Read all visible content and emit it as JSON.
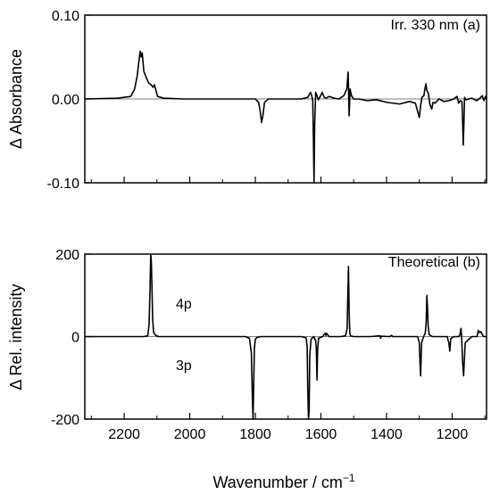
{
  "chart_data": [
    {
      "type": "line",
      "panel": "(a)",
      "annotation": "Irr. 330 nm (a)",
      "ylabel": "Δ Absorbance",
      "xlabel": "",
      "xlim": [
        2320,
        1095
      ],
      "ylim": [
        -0.1,
        0.1
      ],
      "yticks": [
        0.1,
        0.0,
        -0.1
      ],
      "ytick_labels": [
        "0.10",
        "0.00",
        "-0.10"
      ],
      "xticks": [
        2200,
        2000,
        1800,
        1600,
        1400,
        1200
      ],
      "xtick_labels_visible": false,
      "grid": false,
      "baseline": 0,
      "x": [
        2320,
        2220,
        2180,
        2168,
        2160,
        2155,
        2151,
        2148,
        2145,
        2140,
        2132,
        2125,
        2118,
        2112,
        2108,
        2103,
        2098,
        2080,
        2020,
        1960,
        1900,
        1840,
        1800,
        1790,
        1785,
        1781,
        1777,
        1772,
        1760,
        1700,
        1660,
        1640,
        1632,
        1628,
        1625,
        1623,
        1621,
        1619,
        1616,
        1612,
        1608,
        1602,
        1596,
        1590,
        1585,
        1575,
        1560,
        1545,
        1530,
        1521,
        1517,
        1514,
        1511,
        1507,
        1500,
        1485,
        1460,
        1430,
        1400,
        1360,
        1330,
        1312,
        1305,
        1300,
        1296,
        1292,
        1286,
        1283,
        1280,
        1277,
        1275,
        1272,
        1268,
        1262,
        1258,
        1252,
        1240,
        1225,
        1210,
        1195,
        1185,
        1180,
        1175,
        1170,
        1168,
        1166,
        1164,
        1162,
        1158,
        1150,
        1140,
        1125,
        1115,
        1108,
        1103,
        1098,
        1095
      ],
      "y": [
        0.0,
        0.001,
        0.003,
        0.012,
        0.028,
        0.045,
        0.057,
        0.05,
        0.055,
        0.033,
        0.025,
        0.019,
        0.017,
        0.014,
        0.017,
        0.01,
        0.003,
        0.001,
        0.0,
        0.0,
        0.0,
        0.0,
        0.0,
        -0.004,
        -0.015,
        -0.028,
        -0.02,
        -0.004,
        0.0,
        0.0,
        0.0,
        0.002,
        0.008,
        0.004,
        -0.002,
        -0.045,
        -0.1,
        -0.03,
        0.008,
        0.004,
        -0.001,
        0.003,
        0.008,
        0.002,
        0.001,
        0.003,
        0.001,
        0.0,
        0.004,
        0.012,
        0.032,
        -0.02,
        0.012,
        0.004,
        0.0,
        0.0,
        -0.002,
        -0.001,
        -0.004,
        -0.006,
        -0.003,
        -0.005,
        -0.015,
        -0.022,
        -0.008,
        0.002,
        0.004,
        0.012,
        0.018,
        0.01,
        0.009,
        0.006,
        -0.006,
        -0.012,
        -0.004,
        -0.005,
        0.0,
        -0.003,
        -0.002,
        0.0,
        0.003,
        -0.005,
        -0.002,
        -0.003,
        -0.025,
        -0.055,
        -0.03,
        0.002,
        -0.001,
        0.0,
        0.001,
        -0.002,
        0.001,
        0.004,
        -0.002,
        0.003,
        0.0
      ]
    },
    {
      "type": "line",
      "panel": "(b)",
      "annotation": "Theoretical (b)",
      "band_labels": [
        "4p",
        "3p"
      ],
      "ylabel": "Δ Rel. intensity",
      "xlabel": "Wavenumber / cm−1",
      "xlim": [
        2320,
        1095
      ],
      "ylim": [
        -200,
        200
      ],
      "yticks": [
        200,
        0,
        -200
      ],
      "ytick_labels": [
        "200",
        "0",
        "-200"
      ],
      "xticks": [
        2200,
        2000,
        1800,
        1600,
        1400,
        1200
      ],
      "xtick_labels": [
        "2200",
        "2000",
        "1800",
        "1600",
        "1400",
        "1200"
      ],
      "grid": false,
      "baseline": 0,
      "x": [
        2320,
        2140,
        2128,
        2124,
        2121,
        2119,
        2117,
        2115,
        2113,
        2110,
        2104,
        2095,
        1920,
        1830,
        1818,
        1812,
        1809,
        1807,
        1805,
        1803,
        1800,
        1795,
        1785,
        1660,
        1645,
        1642,
        1640,
        1638,
        1636,
        1634,
        1630,
        1622,
        1616,
        1614,
        1612,
        1610,
        1607,
        1595,
        1587,
        1585,
        1583,
        1575,
        1540,
        1525,
        1520,
        1518,
        1516,
        1514,
        1512,
        1510,
        1500,
        1450,
        1420,
        1418,
        1416,
        1390,
        1385,
        1380,
        1340,
        1305,
        1300,
        1298,
        1296,
        1293,
        1287,
        1282,
        1279,
        1277,
        1275,
        1273,
        1270,
        1260,
        1215,
        1210,
        1207,
        1204,
        1195,
        1180,
        1176,
        1173,
        1171,
        1168,
        1165,
        1160,
        1140,
        1124,
        1122,
        1120,
        1117,
        1112,
        1108,
        1104,
        1100,
        1095
      ],
      "y": [
        0,
        0,
        2,
        30,
        120,
        200,
        180,
        110,
        40,
        10,
        3,
        0,
        0,
        0,
        -4,
        -40,
        -150,
        -200,
        -120,
        -30,
        -6,
        -2,
        0,
        0,
        -3,
        -25,
        -130,
        -200,
        -180,
        -45,
        -6,
        0,
        -10,
        -30,
        -105,
        -30,
        -4,
        0,
        8,
        3,
        8,
        0,
        0,
        2,
        20,
        100,
        170,
        60,
        10,
        2,
        0,
        0,
        2,
        -4,
        1,
        0,
        3,
        0,
        0,
        0,
        -15,
        -60,
        -95,
        -15,
        0,
        8,
        35,
        100,
        70,
        25,
        5,
        0,
        0,
        -15,
        -35,
        -5,
        0,
        0,
        4,
        20,
        0,
        -60,
        -95,
        -15,
        0,
        0,
        8,
        15,
        10,
        12,
        5,
        0,
        0,
        0
      ]
    }
  ]
}
